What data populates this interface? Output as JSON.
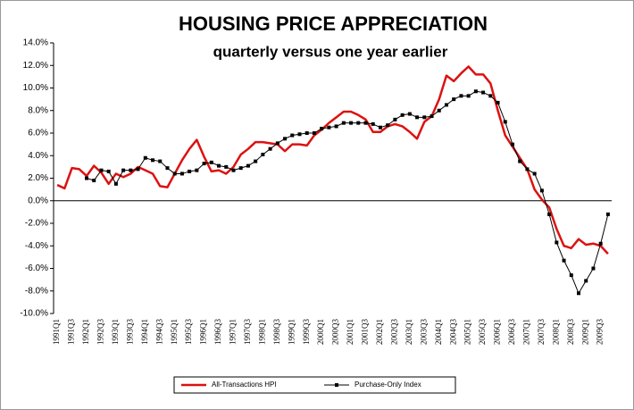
{
  "chart_data": {
    "type": "line",
    "title": "HOUSING PRICE APPRECIATION",
    "subtitle": "quarterly versus one year earlier",
    "categories": [
      "1991Q1",
      null,
      "1991Q3",
      null,
      "1992Q1",
      null,
      "1992Q3",
      null,
      "1993Q1",
      null,
      "1993Q3",
      null,
      "1994Q1",
      null,
      "1994Q3",
      null,
      "1995Q1",
      null,
      "1995Q3",
      null,
      "1996Q1",
      null,
      "1996Q3",
      null,
      "1997Q1",
      null,
      "1997Q3",
      null,
      "1998Q1",
      null,
      "1998Q3",
      null,
      "1999Q1",
      null,
      "1999Q3",
      null,
      "2000Q1",
      null,
      "2000Q3",
      null,
      "2001Q1",
      null,
      "2001Q3",
      null,
      "2002Q1",
      null,
      "2002Q3",
      null,
      "2003Q1",
      null,
      "2003Q3",
      null,
      "2004Q1",
      null,
      "2004Q3",
      null,
      "2005Q1",
      null,
      "2005Q3",
      null,
      "2006Q1",
      null,
      "2006Q3",
      null,
      "2007Q1",
      null,
      "2007Q3",
      null,
      "2008Q1",
      null,
      "2008Q3",
      null,
      "2009Q1",
      null,
      "2009Q3",
      null
    ],
    "series": [
      {
        "name": "All-Transactions HPI",
        "color": "#dd1111",
        "marker": false,
        "values": [
          1.4,
          1.1,
          2.9,
          2.8,
          2.2,
          3.1,
          2.5,
          1.5,
          2.4,
          2.1,
          2.4,
          3.0,
          2.7,
          2.4,
          1.3,
          1.2,
          2.4,
          3.6,
          4.6,
          5.4,
          3.9,
          2.6,
          2.7,
          2.4,
          3.0,
          4.1,
          4.6,
          5.2,
          5.2,
          5.1,
          5.0,
          4.4,
          5.0,
          5.0,
          4.9,
          5.8,
          6.3,
          6.9,
          7.4,
          7.9,
          7.9,
          7.6,
          7.2,
          6.1,
          6.1,
          6.6,
          6.8,
          6.6,
          6.1,
          5.5,
          7.0,
          7.5,
          9.0,
          11.1,
          10.6,
          11.3,
          11.9,
          11.2,
          11.2,
          10.4,
          8.0,
          5.8,
          4.8,
          3.8,
          2.8,
          1.0,
          0.1,
          -0.6,
          -2.5,
          -4.0,
          -4.2,
          -3.4,
          -3.9,
          -3.8,
          -4.0,
          -4.7
        ]
      },
      {
        "name": "Purchase-Only Index",
        "color": "#000000",
        "marker": true,
        "values": [
          null,
          null,
          null,
          null,
          2.0,
          1.8,
          2.7,
          2.6,
          1.5,
          2.7,
          2.7,
          2.8,
          3.8,
          3.6,
          3.5,
          2.9,
          2.4,
          2.4,
          2.6,
          2.7,
          3.3,
          3.4,
          3.1,
          3.0,
          2.7,
          2.9,
          3.1,
          3.5,
          4.1,
          4.6,
          5.1,
          5.5,
          5.8,
          5.9,
          6.0,
          6.0,
          6.4,
          6.5,
          6.6,
          6.9,
          6.9,
          6.9,
          6.9,
          6.8,
          6.5,
          6.7,
          7.2,
          7.6,
          7.7,
          7.4,
          7.4,
          7.5,
          8.0,
          8.5,
          9.0,
          9.3,
          9.3,
          9.7,
          9.6,
          9.3,
          8.7,
          7.0,
          5.0,
          3.5,
          2.8,
          2.4,
          0.9,
          -1.2,
          -3.7,
          -5.3,
          -6.6,
          -8.2,
          -7.1,
          -6.0,
          -3.8,
          -1.2
        ]
      }
    ],
    "ylim": [
      -10,
      14
    ],
    "yticks": [
      {
        "value": -10,
        "label": "-10.0%"
      },
      {
        "value": -8,
        "label": "-8.0%"
      },
      {
        "value": -6,
        "label": "-6.0%"
      },
      {
        "value": -4,
        "label": "-4.0%"
      },
      {
        "value": -2,
        "label": "-2.0%"
      },
      {
        "value": 0,
        "label": "0.0%"
      },
      {
        "value": 2,
        "label": "2.0%"
      },
      {
        "value": 4,
        "label": "4.0%"
      },
      {
        "value": 6,
        "label": "6.0%"
      },
      {
        "value": 8,
        "label": "8.0%"
      },
      {
        "value": 10,
        "label": "10.0%"
      },
      {
        "value": 12,
        "label": "12.0%"
      },
      {
        "value": 14,
        "label": "14.0%"
      }
    ],
    "grid": false,
    "legend": "bottom"
  }
}
